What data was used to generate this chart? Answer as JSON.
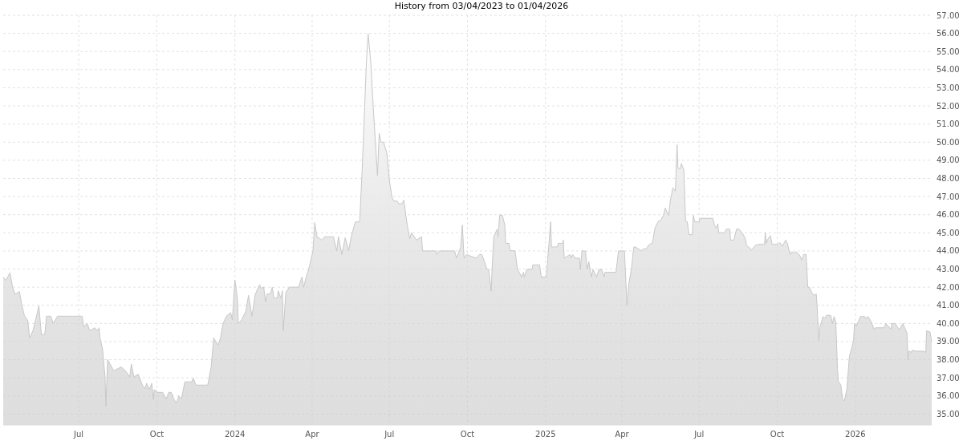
{
  "chart_data": {
    "type": "area",
    "title": "History from 03/04/2023  to 01/04/2026",
    "xlim": [
      "2023-04-03",
      "2026-04-01"
    ],
    "xticks": [
      {
        "value": "2023-07-01",
        "label": "Jul"
      },
      {
        "value": "2023-10-01",
        "label": "Oct"
      },
      {
        "value": "2024-01-01",
        "label": "2024"
      },
      {
        "value": "2024-04-01",
        "label": "Apr"
      },
      {
        "value": "2024-07-01",
        "label": "Jul"
      },
      {
        "value": "2024-10-01",
        "label": "Oct"
      },
      {
        "value": "2025-01-01",
        "label": "2025"
      },
      {
        "value": "2025-04-01",
        "label": "Apr"
      },
      {
        "value": "2025-07-01",
        "label": "Jul"
      },
      {
        "value": "2025-10-01",
        "label": "Oct"
      },
      {
        "value": "2026-01-01",
        "label": "2026"
      }
    ],
    "ylim": [
      34.4,
      57
    ],
    "yticks": [
      {
        "value": 35,
        "label": "35.00"
      },
      {
        "value": 36,
        "label": "36.00"
      },
      {
        "value": 37,
        "label": "37.00"
      },
      {
        "value": 38,
        "label": "38.00"
      },
      {
        "value": 39,
        "label": "39.00"
      },
      {
        "value": 40,
        "label": "40.00"
      },
      {
        "value": 41,
        "label": "41.00"
      },
      {
        "value": 42,
        "label": "42.00"
      },
      {
        "value": 43,
        "label": "43.00"
      },
      {
        "value": 44,
        "label": "44.00"
      },
      {
        "value": 45,
        "label": "45.00"
      },
      {
        "value": 46,
        "label": "46.00"
      },
      {
        "value": 47,
        "label": "47.00"
      },
      {
        "value": 48,
        "label": "48.00"
      },
      {
        "value": 49,
        "label": "49.00"
      },
      {
        "value": 50,
        "label": "50.00"
      },
      {
        "value": 51,
        "label": "51.00"
      },
      {
        "value": 52,
        "label": "52.00"
      },
      {
        "value": 53,
        "label": "53.00"
      },
      {
        "value": 54,
        "label": "54.00"
      },
      {
        "value": 55,
        "label": "55.00"
      },
      {
        "value": 56,
        "label": "56.00"
      },
      {
        "value": 57,
        "label": "57.00"
      }
    ],
    "grid": true,
    "x": [
      "2023-04-03",
      "2023-04-06",
      "2023-04-11",
      "2023-04-14",
      "2023-04-17",
      "2023-04-22",
      "2023-04-25",
      "2023-04-28",
      "2023-05-02",
      "2023-05-04",
      "2023-05-08",
      "2023-05-11",
      "2023-05-15",
      "2023-05-18",
      "2023-05-22",
      "2023-05-24",
      "2023-05-29",
      "2023-06-01",
      "2023-06-06",
      "2023-06-13",
      "2023-06-24",
      "2023-07-05",
      "2023-07-07",
      "2023-07-11",
      "2023-07-14",
      "2023-07-20",
      "2023-07-23",
      "2023-07-25",
      "2023-07-26",
      "2023-07-29",
      "2023-08-01",
      "2023-08-02",
      "2023-08-04",
      "2023-08-08",
      "2023-08-11",
      "2023-08-20",
      "2023-08-25",
      "2023-08-30",
      "2023-09-01",
      "2023-09-04",
      "2023-09-09",
      "2023-09-14",
      "2023-09-17",
      "2023-09-19",
      "2023-09-22",
      "2023-09-25",
      "2023-09-27",
      "2023-09-28",
      "2023-10-02",
      "2023-10-08",
      "2023-10-12",
      "2023-10-15",
      "2023-10-18",
      "2023-10-21",
      "2023-10-24",
      "2023-10-27",
      "2023-10-30",
      "2023-11-03",
      "2023-11-11",
      "2023-11-13",
      "2023-11-16",
      "2023-11-21",
      "2023-11-30",
      "2023-12-04",
      "2023-12-07",
      "2023-12-12",
      "2023-12-15",
      "2023-12-18",
      "2023-12-22",
      "2023-12-27",
      "2023-12-29",
      "2024-01-01",
      "2024-01-04",
      "2024-01-05",
      "2024-01-09",
      "2024-01-14",
      "2024-01-17",
      "2024-01-21",
      "2024-01-25",
      "2024-01-30",
      "2024-02-01",
      "2024-02-04",
      "2024-02-06",
      "2024-02-08",
      "2024-02-12",
      "2024-02-14",
      "2024-02-16",
      "2024-02-20",
      "2024-02-21",
      "2024-02-24",
      "2024-02-26",
      "2024-02-27",
      "2024-03-01",
      "2024-03-05",
      "2024-03-16",
      "2024-03-20",
      "2024-03-22",
      "2024-03-25",
      "2024-03-28",
      "2024-04-02",
      "2024-04-04",
      "2024-04-07",
      "2024-04-09",
      "2024-04-12",
      "2024-04-16",
      "2024-04-26",
      "2024-04-30",
      "2024-05-02",
      "2024-05-06",
      "2024-05-10",
      "2024-05-14",
      "2024-05-17",
      "2024-05-22",
      "2024-05-27",
      "2024-05-30",
      "2024-06-04",
      "2024-06-06",
      "2024-06-09",
      "2024-06-12",
      "2024-06-17",
      "2024-06-19",
      "2024-06-21",
      "2024-06-24",
      "2024-06-28",
      "2024-07-01",
      "2024-07-04",
      "2024-07-06",
      "2024-07-10",
      "2024-07-12",
      "2024-07-16",
      "2024-07-18",
      "2024-07-22",
      "2024-07-25",
      "2024-07-27",
      "2024-07-30",
      "2024-08-02",
      "2024-08-08",
      "2024-08-09",
      "2024-08-25",
      "2024-08-26",
      "2024-08-29",
      "2024-09-16",
      "2024-09-18",
      "2024-09-23",
      "2024-09-25",
      "2024-09-27",
      "2024-09-30",
      "2024-10-11",
      "2024-10-15",
      "2024-10-18",
      "2024-10-21",
      "2024-10-24",
      "2024-10-26",
      "2024-10-29",
      "2024-10-30",
      "2024-11-01",
      "2024-11-05",
      "2024-11-06",
      "2024-11-08",
      "2024-11-11",
      "2024-11-14",
      "2024-11-15",
      "2024-11-19",
      "2024-11-20",
      "2024-11-26",
      "2024-11-29",
      "2024-12-04",
      "2024-12-06",
      "2024-12-07",
      "2024-12-10",
      "2024-12-16",
      "2024-12-17",
      "2024-12-25",
      "2024-12-27",
      "2025-01-02",
      "2025-01-07",
      "2025-01-08",
      "2025-01-15",
      "2025-01-16",
      "2025-01-21",
      "2025-01-22",
      "2025-01-23",
      "2025-01-30",
      "2025-01-31",
      "2025-02-02",
      "2025-02-05",
      "2025-02-10",
      "2025-02-11",
      "2025-02-13",
      "2025-02-17",
      "2025-02-19",
      "2025-02-21",
      "2025-02-24",
      "2025-02-26",
      "2025-03-02",
      "2025-03-05",
      "2025-03-08",
      "2025-03-11",
      "2025-03-12",
      "2025-03-25",
      "2025-03-28",
      "2025-04-04",
      "2025-04-07",
      "2025-04-09",
      "2025-04-12",
      "2025-04-15",
      "2025-04-17",
      "2025-04-24",
      "2025-04-26",
      "2025-04-30",
      "2025-05-02",
      "2025-05-07",
      "2025-05-10",
      "2025-05-14",
      "2025-05-16",
      "2025-05-20",
      "2025-05-22",
      "2025-05-26",
      "2025-05-28",
      "2025-05-31",
      "2025-06-03",
      "2025-06-05",
      "2025-06-06",
      "2025-06-09",
      "2025-06-10",
      "2025-06-13",
      "2025-06-15",
      "2025-06-17",
      "2025-06-19",
      "2025-06-23",
      "2025-06-24",
      "2025-06-26",
      "2025-07-01",
      "2025-07-02",
      "2025-07-17",
      "2025-07-19",
      "2025-07-21",
      "2025-07-23",
      "2025-07-24",
      "2025-07-31",
      "2025-08-02",
      "2025-08-06",
      "2025-08-07",
      "2025-08-11",
      "2025-08-14",
      "2025-08-17",
      "2025-08-21",
      "2025-08-24",
      "2025-08-26",
      "2025-09-01",
      "2025-09-05",
      "2025-09-09",
      "2025-09-16",
      "2025-09-17",
      "2025-09-18",
      "2025-09-20",
      "2025-09-23",
      "2025-09-25",
      "2025-10-02",
      "2025-10-04",
      "2025-10-07",
      "2025-10-11",
      "2025-10-13",
      "2025-10-16",
      "2025-10-18",
      "2025-10-21",
      "2025-10-23",
      "2025-10-27",
      "2025-10-30",
      "2025-11-01",
      "2025-11-04",
      "2025-11-06",
      "2025-11-08",
      "2025-11-11",
      "2025-11-14",
      "2025-11-16",
      "2025-11-17",
      "2025-11-19",
      "2025-11-20",
      "2025-11-24",
      "2025-11-26",
      "2025-11-28",
      "2025-12-03",
      "2025-12-05",
      "2025-12-07",
      "2025-12-09",
      "2025-12-11",
      "2025-12-12",
      "2025-12-15",
      "2025-12-17",
      "2025-12-19",
      "2025-12-22",
      "2025-12-25",
      "2025-12-30",
      "2025-12-31",
      "2026-01-02",
      "2026-01-07",
      "2026-01-12",
      "2026-01-13",
      "2026-01-16",
      "2026-01-20",
      "2026-01-23",
      "2026-01-25",
      "2026-02-04",
      "2026-02-06",
      "2026-02-12",
      "2026-02-13",
      "2026-02-17",
      "2026-02-19",
      "2026-02-22",
      "2026-02-26",
      "2026-03-03",
      "2026-03-04",
      "2026-03-05",
      "2026-03-08",
      "2026-03-09",
      "2026-03-13",
      "2026-03-22",
      "2026-03-25",
      "2026-03-26",
      "2026-03-30",
      "2026-04-01"
    ],
    "series": [
      {
        "color": "#c8c8c8",
        "values": [
          42.56,
          42.37,
          42.8,
          42.0,
          41.6,
          41.76,
          41.0,
          40.43,
          40.15,
          39.2,
          39.6,
          40.15,
          40.98,
          39.38,
          39.4,
          40.4,
          40.4,
          40.0,
          40.4,
          40.4,
          40.4,
          40.4,
          39.8,
          40.0,
          39.6,
          39.76,
          39.6,
          39.76,
          39.2,
          38.6,
          37.05,
          35.42,
          38.0,
          37.67,
          37.39,
          37.6,
          37.39,
          37.05,
          37.76,
          37.05,
          37.2,
          36.6,
          36.4,
          36.7,
          36.35,
          36.7,
          35.8,
          36.35,
          36.2,
          36.2,
          35.84,
          36.2,
          36.2,
          35.84,
          35.6,
          36.0,
          35.84,
          36.78,
          36.78,
          36.98,
          36.6,
          36.6,
          36.6,
          37.6,
          39.2,
          38.8,
          39.2,
          40.0,
          40.4,
          40.6,
          40.2,
          42.4,
          41.36,
          40.0,
          40.2,
          40.7,
          41.55,
          40.4,
          41.6,
          42.14,
          41.94,
          42.0,
          41.2,
          41.63,
          41.63,
          42.0,
          41.4,
          41.4,
          41.8,
          41.4,
          41.8,
          39.6,
          41.7,
          42.0,
          42.0,
          42.56,
          42.0,
          42.56,
          43.0,
          44.0,
          45.56,
          44.73,
          44.73,
          44.6,
          44.78,
          44.78,
          44.0,
          44.78,
          43.8,
          44.73,
          44.0,
          44.8,
          45.6,
          45.6,
          48.54,
          54.5,
          55.96,
          54.44,
          51.95,
          48.15,
          50.48,
          50.0,
          50.0,
          49.4,
          47.9,
          46.98,
          46.75,
          46.75,
          46.6,
          46.6,
          46.8,
          45.43,
          44.66,
          45.0,
          44.8,
          44.6,
          44.78,
          44.0,
          44.0,
          43.8,
          44.0,
          44.0,
          43.6,
          44.2,
          45.43,
          43.6,
          43.8,
          43.6,
          43.8,
          43.8,
          43.41,
          42.98,
          42.98,
          41.78,
          42.98,
          44.78,
          45.2,
          44.78,
          45.98,
          45.98,
          45.43,
          44.42,
          44.42,
          44.03,
          44.0,
          42.98,
          42.56,
          42.82,
          42.56,
          42.98,
          42.98,
          43.23,
          43.23,
          42.56,
          42.56,
          45.6,
          44.22,
          44.22,
          44.42,
          44.42,
          44.6,
          43.6,
          43.8,
          43.6,
          43.8,
          43.6,
          43.6,
          42.98,
          44.0,
          44.0,
          42.98,
          43.41,
          42.56,
          42.98,
          42.56,
          42.98,
          42.98,
          42.56,
          42.82,
          42.82,
          44.0,
          44.0,
          40.98,
          42.14,
          42.95,
          44.22,
          44.22,
          44.0,
          44.11,
          44.11,
          44.3,
          44.46,
          45.26,
          45.65,
          45.65,
          45.96,
          46.36,
          45.96,
          46.75,
          47.48,
          47.3,
          49.86,
          48.57,
          48.54,
          48.82,
          48.46,
          45.65,
          45.6,
          44.9,
          44.9,
          45.96,
          45.6,
          45.6,
          45.8,
          45.8,
          45.43,
          45.26,
          45.5,
          45.0,
          45.0,
          45.2,
          45.2,
          44.6,
          44.6,
          45.2,
          45.2,
          44.97,
          44.73,
          44.3,
          44.06,
          44.3,
          44.36,
          44.36,
          45.0,
          44.42,
          44.66,
          44.84,
          44.36,
          44.36,
          44.46,
          44.26,
          44.6,
          44.42,
          43.8,
          43.95,
          43.88,
          43.95,
          43.8,
          43.49,
          43.8,
          43.8,
          42.0,
          42.0,
          41.66,
          41.55,
          41.63,
          40.93,
          39.06,
          39.76,
          40.38,
          40.28,
          40.45,
          40.45,
          40.0,
          40.38,
          40.07,
          37.51,
          36.81,
          36.6,
          35.84,
          35.73,
          36.35,
          38.17,
          39.06,
          40.0,
          39.84,
          40.38,
          40.38,
          40.28,
          40.38,
          40.07,
          39.68,
          39.76,
          39.76,
          40.0,
          39.68,
          40.0,
          40.0,
          39.84,
          39.66,
          40.0,
          39.45,
          38.0,
          38.47,
          38.41,
          38.52,
          38.47,
          38.47,
          38.41,
          39.6,
          39.53,
          38.99
        ]
      }
    ]
  }
}
